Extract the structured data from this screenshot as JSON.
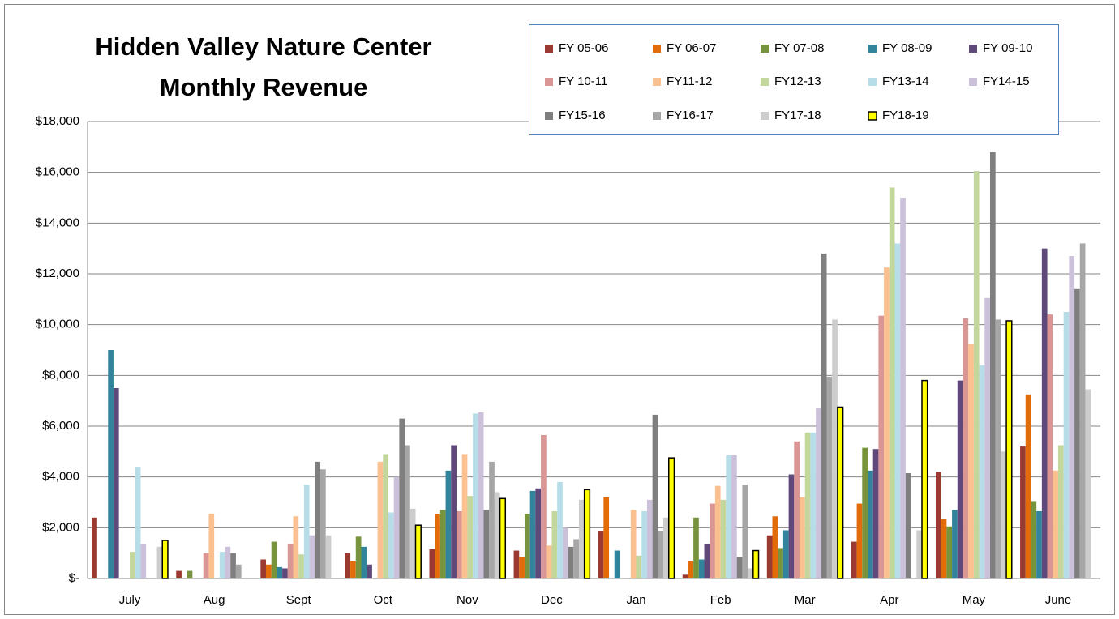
{
  "chart_data": {
    "type": "bar",
    "title": [
      "Hidden Valley Nature Center",
      "Monthly Revenue"
    ],
    "categories": [
      "July",
      "Aug",
      "Sept",
      "Oct",
      "Nov",
      "Dec",
      "Jan",
      "Feb",
      "Mar",
      "Apr",
      "May",
      "June"
    ],
    "ylim": [
      0,
      18000
    ],
    "yticks": [
      {
        "value": 0,
        "label": "$-"
      },
      {
        "value": 2000,
        "label": "$2,000"
      },
      {
        "value": 4000,
        "label": "$4,000"
      },
      {
        "value": 6000,
        "label": "$6,000"
      },
      {
        "value": 8000,
        "label": "$8,000"
      },
      {
        "value": 10000,
        "label": "$10,000"
      },
      {
        "value": 12000,
        "label": "$12,000"
      },
      {
        "value": 14000,
        "label": "$14,000"
      },
      {
        "value": 16000,
        "label": "$16,000"
      },
      {
        "value": 18000,
        "label": "$18,000"
      }
    ],
    "grid": true,
    "legend": "top-right",
    "series": [
      {
        "name": "FY 05-06",
        "color": "#9b3a33",
        "values": [
          2400,
          300,
          750,
          1000,
          1150,
          1100,
          1850,
          150,
          1700,
          1450,
          4200,
          5200
        ]
      },
      {
        "name": "FY 06-07",
        "color": "#e36c0a",
        "values": [
          0,
          0,
          550,
          700,
          2550,
          850,
          3200,
          700,
          2450,
          2950,
          2350,
          7250
        ]
      },
      {
        "name": "FY 07-08",
        "color": "#77933c",
        "values": [
          0,
          300,
          1450,
          1650,
          2700,
          2550,
          0,
          2400,
          1200,
          5150,
          2050,
          3050
        ]
      },
      {
        "name": "FY 08-09",
        "color": "#31849b",
        "values": [
          9000,
          0,
          450,
          1250,
          4250,
          3450,
          1100,
          750,
          1900,
          4250,
          2700,
          2650
        ]
      },
      {
        "name": "FY 09-10",
        "color": "#5f497a",
        "values": [
          7500,
          0,
          400,
          550,
          5250,
          3550,
          0,
          1350,
          4100,
          5100,
          7800,
          13000
        ]
      },
      {
        "name": "FY 10-11",
        "color": "#d99694",
        "values": [
          0,
          1000,
          1350,
          0,
          2650,
          5650,
          0,
          2950,
          5400,
          10350,
          10250,
          10400
        ]
      },
      {
        "name": "FY11-12",
        "color": "#fac090",
        "values": [
          0,
          2550,
          2450,
          4600,
          4900,
          1300,
          2700,
          3650,
          3200,
          12250,
          9250,
          4250
        ]
      },
      {
        "name": "FY12-13",
        "color": "#c3d69b",
        "values": [
          1050,
          0,
          950,
          4900,
          3250,
          2650,
          900,
          3100,
          5750,
          15400,
          16050,
          5250
        ]
      },
      {
        "name": "FY13-14",
        "color": "#b7dee8",
        "values": [
          4400,
          1050,
          3700,
          2600,
          6500,
          3800,
          2650,
          4850,
          5750,
          13200,
          8400,
          10500
        ]
      },
      {
        "name": "FY14-15",
        "color": "#ccc1da",
        "values": [
          1350,
          1250,
          1700,
          4000,
          6550,
          2000,
          3100,
          4850,
          6700,
          15000,
          11050,
          12700
        ]
      },
      {
        "name": "FY15-16",
        "color": "#7f7f7f",
        "values": [
          0,
          1000,
          4600,
          6300,
          2700,
          1250,
          6450,
          850,
          12800,
          4150,
          16800,
          11400
        ]
      },
      {
        "name": "FY16-17",
        "color": "#a6a6a6",
        "values": [
          0,
          550,
          4300,
          5250,
          4600,
          1550,
          1850,
          3700,
          7950,
          0,
          10200,
          13200
        ]
      },
      {
        "name": "FY17-18",
        "color": "#cdcdcd",
        "values": [
          1250,
          0,
          1700,
          2750,
          3400,
          3100,
          2400,
          400,
          10200,
          1900,
          5000,
          7450
        ]
      },
      {
        "name": "FY18-19",
        "color": "#ffff00",
        "values": [
          1500,
          0,
          0,
          2100,
          3150,
          3500,
          4750,
          1100,
          6750,
          7800,
          10150,
          0
        ]
      }
    ]
  }
}
